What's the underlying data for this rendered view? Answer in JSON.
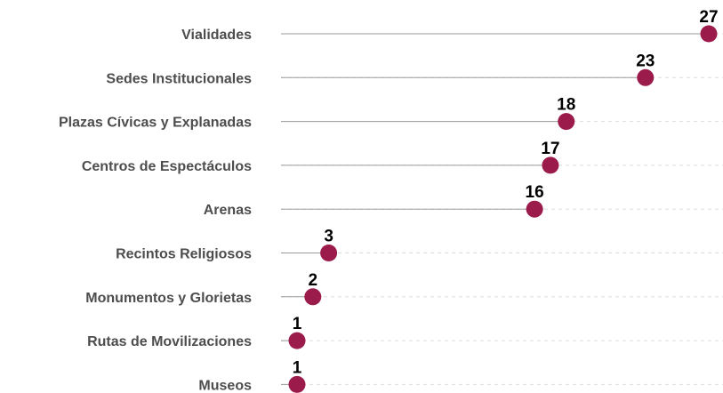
{
  "chart_data": {
    "type": "lollipop",
    "categories": [
      "Vialidades",
      "Sedes Institucionales",
      "Plazas Cívicas y Explanadas",
      "Centros de Espectáculos",
      "Arenas",
      "Recintos Religiosos",
      "Monumentos y Glorietas",
      "Rutas de Movilizaciones",
      "Museos"
    ],
    "values": [
      27,
      23,
      18,
      17,
      16,
      3,
      2,
      1,
      1
    ],
    "title": "",
    "xlabel": "",
    "ylabel": "",
    "xlim": [
      0,
      27
    ],
    "grid": "dashed horizontal",
    "legend": "none",
    "colors": {
      "point": "#9b1b4b",
      "stem": "#9a9a9a",
      "grid": "#dedede",
      "category_text": "#4d4d4d",
      "value_text": "#000000"
    }
  }
}
